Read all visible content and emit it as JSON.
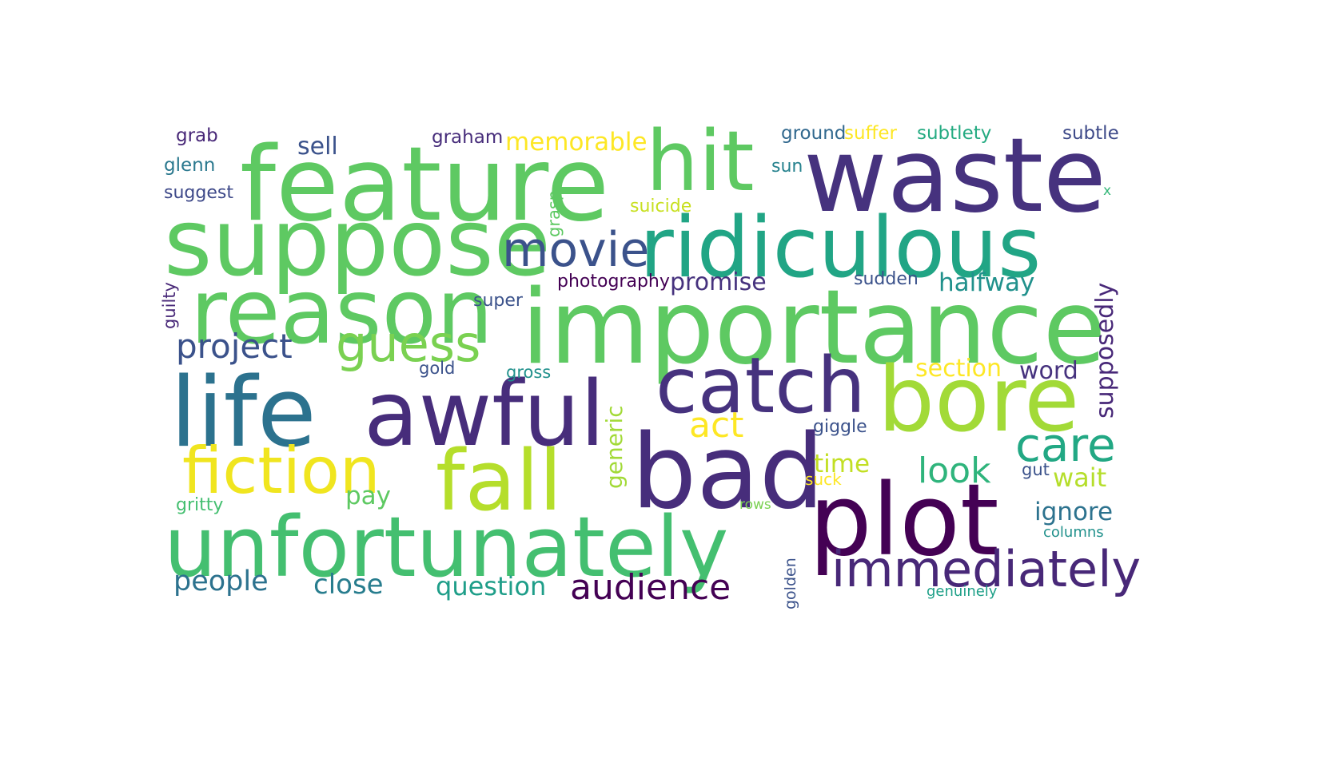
{
  "word_cloud": {
    "words": [
      {
        "text": "waste",
        "color": "#46327e"
      },
      {
        "text": "feature",
        "color": "#5ec962"
      },
      {
        "text": "hit",
        "color": "#5ec962"
      },
      {
        "text": "suppose",
        "color": "#5ec962"
      },
      {
        "text": "movie",
        "color": "#3b528b"
      },
      {
        "text": "ridiculous",
        "color": "#21a585"
      },
      {
        "text": "reason",
        "color": "#5ec962"
      },
      {
        "text": "importance",
        "color": "#5ec962"
      },
      {
        "text": "project",
        "color": "#3b528b"
      },
      {
        "text": "guess",
        "color": "#7ad151"
      },
      {
        "text": "catch",
        "color": "#46327e"
      },
      {
        "text": "bore",
        "color": "#a2da37"
      },
      {
        "text": "life",
        "color": "#2c728e"
      },
      {
        "text": "awful",
        "color": "#472d7b"
      },
      {
        "text": "act",
        "color": "#fde725"
      },
      {
        "text": "care",
        "color": "#22a884"
      },
      {
        "text": "fiction",
        "color": "#f0e51f"
      },
      {
        "text": "fall",
        "color": "#b5de2b"
      },
      {
        "text": "bad",
        "color": "#472d7b"
      },
      {
        "text": "plot",
        "color": "#440154"
      },
      {
        "text": "look",
        "color": "#2fb47c"
      },
      {
        "text": "unfortunately",
        "color": "#44bf70"
      },
      {
        "text": "immediately",
        "color": "#482878"
      },
      {
        "text": "audience",
        "color": "#440154"
      },
      {
        "text": "people",
        "color": "#2c728e"
      },
      {
        "text": "close",
        "color": "#287d8e"
      },
      {
        "text": "question",
        "color": "#1f9e89"
      },
      {
        "text": "sell",
        "color": "#3b528b"
      },
      {
        "text": "memorable",
        "color": "#fde725"
      },
      {
        "text": "grab",
        "color": "#482878"
      },
      {
        "text": "graham",
        "color": "#472d7b"
      },
      {
        "text": "glenn",
        "color": "#2a788e"
      },
      {
        "text": "suggest",
        "color": "#3e4989"
      },
      {
        "text": "ground",
        "color": "#31688e"
      },
      {
        "text": "suffer",
        "color": "#fde725"
      },
      {
        "text": "subtlety",
        "color": "#25ab82"
      },
      {
        "text": "subtle",
        "color": "#3e4a89"
      },
      {
        "text": "sun",
        "color": "#26828e"
      },
      {
        "text": "x",
        "color": "#35b779"
      },
      {
        "text": "suicide",
        "color": "#c8e020"
      },
      {
        "text": "photography",
        "color": "#440154"
      },
      {
        "text": "promise",
        "color": "#46327e"
      },
      {
        "text": "halfway",
        "color": "#21918c"
      },
      {
        "text": "sudden",
        "color": "#3b528b"
      },
      {
        "text": "super",
        "color": "#3b528b"
      },
      {
        "text": "section",
        "color": "#fde725"
      },
      {
        "text": "word",
        "color": "#46327e"
      },
      {
        "text": "gold",
        "color": "#3b528b"
      },
      {
        "text": "gross",
        "color": "#21918c"
      },
      {
        "text": "giggle",
        "color": "#3b528b"
      },
      {
        "text": "time",
        "color": "#c2df23"
      },
      {
        "text": "suck",
        "color": "#fde725"
      },
      {
        "text": "gut",
        "color": "#3b528b"
      },
      {
        "text": "wait",
        "color": "#b5de2b"
      },
      {
        "text": "pay",
        "color": "#5ec962"
      },
      {
        "text": "gritty",
        "color": "#44bf70"
      },
      {
        "text": "rows",
        "color": "#7ad151"
      },
      {
        "text": "ignore",
        "color": "#2c728e"
      },
      {
        "text": "columns",
        "color": "#21918c"
      },
      {
        "text": "genuinely",
        "color": "#1fa088"
      },
      {
        "text": "grasp",
        "color": "#5ec962"
      },
      {
        "text": "guilty",
        "color": "#482878"
      },
      {
        "text": "generic",
        "color": "#a2da37"
      },
      {
        "text": "supposedly",
        "color": "#482878"
      },
      {
        "text": "golden",
        "color": "#3b528b"
      }
    ]
  }
}
